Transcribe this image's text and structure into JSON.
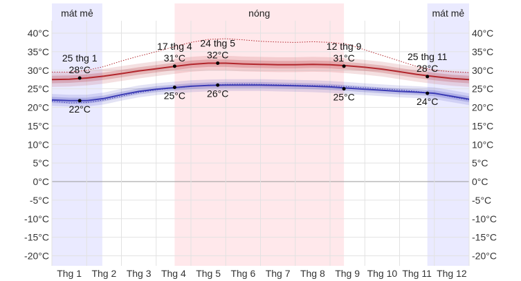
{
  "chart_data": {
    "type": "area",
    "title": "",
    "xlabel": "",
    "ylabel": "",
    "unit": "°C",
    "ylim": [
      -22,
      42
    ],
    "y_ticks": [
      {
        "value": 40,
        "label": "40°C"
      },
      {
        "value": 35,
        "label": "35°C"
      },
      {
        "value": 30,
        "label": "30°C"
      },
      {
        "value": 25,
        "label": "25°C"
      },
      {
        "value": 20,
        "label": "20°C"
      },
      {
        "value": 15,
        "label": "15°C"
      },
      {
        "value": 10,
        "label": "10°C"
      },
      {
        "value": 5,
        "label": "5°C"
      },
      {
        "value": 0,
        "label": "0°C"
      },
      {
        "value": -5,
        "label": "-5°C"
      },
      {
        "value": -10,
        "label": "-10°C"
      },
      {
        "value": -15,
        "label": "-15°C"
      },
      {
        "value": -20,
        "label": "-20°C"
      }
    ],
    "x_domain": [
      0,
      12
    ],
    "months": [
      "Thg 1",
      "Thg 2",
      "Thg 3",
      "Thg 4",
      "Thg 5",
      "Thg 6",
      "Thg 7",
      "Thg 8",
      "Thg 9",
      "Thg 10",
      "Thg 11",
      "Thg 12"
    ],
    "grid": true,
    "seasons": [
      {
        "label": "mát mẻ",
        "start": 0,
        "end": 1.45,
        "color": "#e6e6ff"
      },
      {
        "label": "nóng",
        "start": 3.53,
        "end": 8.4,
        "color": "#ffe4e8"
      },
      {
        "label": "mát mẻ",
        "start": 10.8,
        "end": 12,
        "color": "#e6e6ff"
      }
    ],
    "series": [
      {
        "color": "#b2262c",
        "x": [
          0,
          0.5,
          1,
          1.5,
          2,
          2.5,
          3,
          3.5,
          4,
          4.5,
          5,
          5.5,
          6,
          6.5,
          7,
          7.5,
          8,
          8.5,
          9,
          9.5,
          10,
          10.5,
          11,
          11.5,
          12
        ],
        "y": [
          27.5,
          27.6,
          27.9,
          28.4,
          29.1,
          29.8,
          30.4,
          31.0,
          31.6,
          31.9,
          31.9,
          31.7,
          31.6,
          31.5,
          31.5,
          31.6,
          31.5,
          31.2,
          30.8,
          30.3,
          29.6,
          28.9,
          28.3,
          27.8,
          27.5
        ],
        "band_inner": 1.0,
        "band_outer": 2.0
      },
      {
        "color": "#3b3bb5",
        "x": [
          0,
          0.5,
          1,
          1.5,
          2,
          2.5,
          3,
          3.5,
          4,
          4.5,
          5,
          5.5,
          6,
          6.5,
          7,
          7.5,
          8,
          8.5,
          9,
          9.5,
          10,
          10.5,
          11,
          11.5,
          12
        ],
        "y": [
          22.0,
          21.8,
          21.8,
          22.4,
          23.4,
          24.3,
          24.9,
          25.3,
          25.7,
          25.9,
          26.0,
          26.0,
          26.0,
          25.9,
          25.8,
          25.7,
          25.5,
          25.2,
          24.9,
          24.6,
          24.3,
          24.1,
          23.8,
          23.0,
          22.2
        ],
        "band_inner": 0.8,
        "band_outer": 1.6
      }
    ],
    "record_high": {
      "color": "#b2262c",
      "x": [
        0,
        0.5,
        1,
        1.5,
        2,
        2.5,
        3,
        3.5,
        4,
        4.5,
        5,
        5.5,
        6,
        6.5,
        7,
        7.5,
        8,
        8.5,
        9,
        9.5,
        10,
        10.5,
        11,
        11.5,
        12
      ],
      "y": [
        29.5,
        29.5,
        30.0,
        31.0,
        32.5,
        33.8,
        35.0,
        36.3,
        37.5,
        38.3,
        38.5,
        38.2,
        37.8,
        37.6,
        37.5,
        37.7,
        37.5,
        37.0,
        35.5,
        34.0,
        32.5,
        31.0,
        30.0,
        29.6,
        29.4
      ]
    },
    "record_low": {
      "color": "#3b3bb5",
      "x": [
        0,
        0.5,
        1,
        1.5,
        2,
        2.5,
        3,
        3.5,
        4,
        4.5,
        5,
        5.5,
        6,
        6.5,
        7,
        7.5,
        8,
        8.5,
        9,
        9.5,
        10,
        10.5,
        11,
        11.5,
        12
      ],
      "y": [
        21.7,
        21.2,
        21.3,
        22.0,
        23.0,
        24.0,
        24.7,
        25.2,
        25.6,
        26.0,
        26.2,
        26.3,
        26.2,
        26.1,
        26.0,
        25.9,
        25.8,
        25.6,
        25.3,
        25.0,
        24.7,
        24.3,
        23.8,
        22.8,
        22.0
      ]
    },
    "annotations": [
      {
        "x": 0.8,
        "y": 27.9,
        "date": "25 thg 1",
        "value": "28°C",
        "position": "above"
      },
      {
        "x": 0.8,
        "y": 21.8,
        "value": "22°C",
        "position": "below"
      },
      {
        "x": 3.53,
        "y": 31.1,
        "date": "17 thg 4",
        "value": "31°C",
        "position": "above"
      },
      {
        "x": 3.53,
        "y": 25.4,
        "value": "25°C",
        "position": "below"
      },
      {
        "x": 4.77,
        "y": 31.9,
        "date": "24 thg 5",
        "value": "32°C",
        "position": "above"
      },
      {
        "x": 4.77,
        "y": 26.0,
        "value": "26°C",
        "position": "below"
      },
      {
        "x": 8.4,
        "y": 31.1,
        "date": "12 thg 9",
        "value": "31°C",
        "position": "above"
      },
      {
        "x": 8.4,
        "y": 25.0,
        "value": "25°C",
        "position": "below"
      },
      {
        "x": 10.8,
        "y": 28.3,
        "date": "25 thg 11",
        "value": "28°C",
        "position": "above"
      },
      {
        "x": 10.8,
        "y": 23.8,
        "value": "24°C",
        "position": "below"
      }
    ]
  }
}
